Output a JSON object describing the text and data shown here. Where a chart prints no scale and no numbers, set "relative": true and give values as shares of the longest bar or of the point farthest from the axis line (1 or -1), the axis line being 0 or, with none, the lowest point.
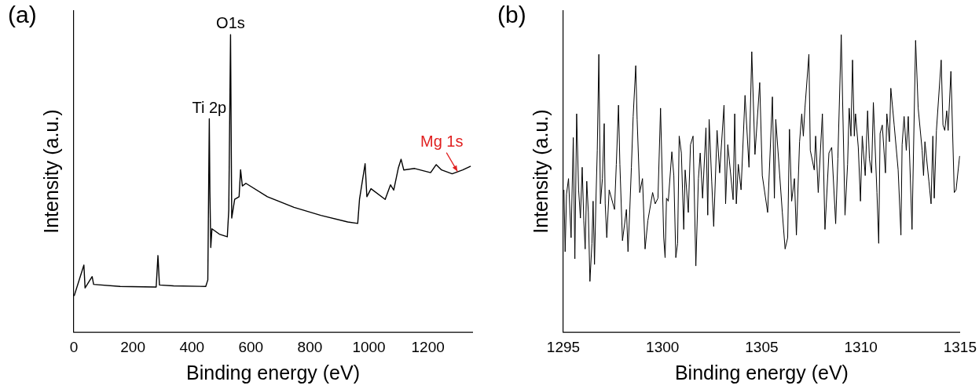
{
  "chart_data": [
    {
      "type": "line",
      "title": "(a)",
      "xlabel": "Binding energy (eV)",
      "ylabel": "Intensity (a.u.)",
      "relative": true,
      "xlim": [
        0,
        1350
      ],
      "xticks": [
        0,
        200,
        400,
        600,
        800,
        1000,
        1200
      ],
      "grid": false,
      "legend": false,
      "marker": "none",
      "annotations": [
        {
          "text": "Ti 2p",
          "x": 459,
          "y": 0.717
        },
        {
          "text": "O1s",
          "x": 531,
          "y": 1
        },
        {
          "text": "Mg 1s",
          "x": 1300,
          "y": 0.54
        }
      ],
      "series": [
        {
          "color": "#000000",
          "x": [
            1,
            34,
            38,
            62,
            67,
            157,
            279,
            285,
            290,
            338,
            447,
            454,
            459,
            461,
            464,
            468,
            493,
            520,
            525,
            531,
            535,
            545,
            560,
            565,
            571,
            583,
            656,
            746,
            837,
            928,
            962,
            968,
            987,
            993,
            1007,
            1055,
            1073,
            1084,
            1100,
            1109,
            1118,
            1155,
            1209,
            1228,
            1246,
            1282,
            1318,
            1345
          ],
          "values": [
            0.121,
            0.225,
            0.148,
            0.186,
            0.16,
            0.153,
            0.151,
            0.257,
            0.158,
            0.155,
            0.153,
            0.175,
            0.717,
            0.473,
            0.284,
            0.347,
            0.329,
            0.32,
            0.41,
            1,
            0.383,
            0.446,
            0.455,
            0.546,
            0.491,
            0.5,
            0.455,
            0.419,
            0.392,
            0.37,
            0.365,
            0.446,
            0.566,
            0.455,
            0.482,
            0.446,
            0.495,
            0.477,
            0.553,
            0.581,
            0.545,
            0.55,
            0.536,
            0.563,
            0.545,
            0.532,
            0.545,
            0.558
          ]
        }
      ]
    },
    {
      "type": "line",
      "title": "(b)",
      "xlabel": "Binding energy (eV)",
      "ylabel": "Intensity (a.u.)",
      "relative": true,
      "xlim": [
        1295,
        1315
      ],
      "xticks": [
        1295,
        1300,
        1305,
        1310,
        1315
      ],
      "grid": false,
      "legend": false,
      "marker": "none",
      "series": [
        {
          "color": "#000000",
          "x": [
            1295.03,
            1295.09,
            1295.16,
            1295.26,
            1295.39,
            1295.5,
            1295.58,
            1295.67,
            1295.77,
            1295.86,
            1295.95,
            1296.03,
            1296.1,
            1296.18,
            1296.26,
            1296.34,
            1296.44,
            1296.5,
            1296.57,
            1296.64,
            1296.71,
            1296.79,
            1296.87,
            1296.97,
            1297.06,
            1297.11,
            1297.19,
            1297.31,
            1297.58,
            1297.67,
            1297.78,
            1297.85,
            1297.98,
            1298.18,
            1298.26,
            1298.35,
            1298.43,
            1298.52,
            1298.65,
            1298.72,
            1298.85,
            1298.99,
            1299.12,
            1299.26,
            1299.5,
            1299.63,
            1299.77,
            1299.9,
            1300.06,
            1300.13,
            1300.2,
            1300.29,
            1300.47,
            1300.57,
            1300.67,
            1300.76,
            1300.84,
            1300.95,
            1301.07,
            1301.14,
            1301.3,
            1301.41,
            1301.54,
            1301.68,
            1301.81,
            1301.9,
            1302.02,
            1302.19,
            1302.28,
            1302.35,
            1302.48,
            1302.58,
            1302.75,
            1302.88,
            1303.1,
            1303.18,
            1303.29,
            1303.56,
            1303.64,
            1303.72,
            1303.82,
            1303.96,
            1304.16,
            1304.36,
            1304.5,
            1304.66,
            1304.9,
            1305.03,
            1305.3,
            1305.54,
            1305.64,
            1305.71,
            1306.04,
            1306.18,
            1306.31,
            1306.4,
            1306.51,
            1306.65,
            1306.75,
            1306.91,
            1307.02,
            1307.1,
            1307.18,
            1307.38,
            1307.45,
            1307.65,
            1307.72,
            1307.85,
            1308.06,
            1308.19,
            1308.39,
            1308.53,
            1308.73,
            1308.84,
            1309.01,
            1309.2,
            1309.33,
            1309.41,
            1309.5,
            1309.58,
            1309.67,
            1309.73,
            1309.87,
            1309.98,
            1310.07,
            1310.22,
            1310.34,
            1310.43,
            1310.54,
            1310.63,
            1310.81,
            1310.9,
            1310.97,
            1311.08,
            1311.24,
            1311.31,
            1311.44,
            1311.51,
            1311.68,
            1311.88,
            1312.02,
            1312.08,
            1312.18,
            1312.29,
            1312.39,
            1312.58,
            1312.76,
            1312.89,
            1313.09,
            1313.16,
            1313.23,
            1313.43,
            1313.54,
            1313.63,
            1313.7,
            1313.81,
            1314.05,
            1314.14,
            1314.23,
            1314.33,
            1314.4,
            1314.54,
            1314.71,
            1314.8,
            1314.98
          ],
          "values": [
            0.478,
            0.27,
            0.464,
            0.516,
            0.317,
            0.654,
            0.246,
            0.734,
            0.478,
            0.383,
            0.554,
            0.374,
            0.279,
            0.507,
            0.402,
            0.17,
            0.298,
            0.44,
            0.227,
            0.436,
            0.611,
            0.934,
            0.431,
            0.516,
            0.701,
            0.431,
            0.317,
            0.478,
            0.412,
            0.564,
            0.763,
            0.564,
            0.307,
            0.412,
            0.27,
            0.412,
            0.554,
            0.725,
            0.896,
            0.715,
            0.469,
            0.516,
            0.279,
            0.374,
            0.469,
            0.431,
            0.45,
            0.753,
            0.317,
            0.25,
            0.45,
            0.44,
            0.606,
            0.526,
            0.25,
            0.298,
            0.659,
            0.602,
            0.345,
            0.545,
            0.402,
            0.63,
            0.659,
            0.222,
            0.516,
            0.602,
            0.45,
            0.687,
            0.393,
            0.715,
            0.507,
            0.355,
            0.678,
            0.535,
            0.763,
            0.431,
            0.63,
            0.445,
            0.734,
            0.431,
            0.564,
            0.478,
            0.796,
            0.554,
            0.943,
            0.597,
            0.839,
            0.526,
            0.402,
            0.791,
            0.45,
            0.715,
            0.402,
            0.279,
            0.317,
            0.682,
            0.44,
            0.516,
            0.326,
            0.64,
            0.734,
            0.659,
            0.753,
            0.934,
            0.611,
            0.545,
            0.659,
            0.469,
            0.734,
            0.345,
            0.602,
            0.621,
            0.364,
            0.583,
            1,
            0.393,
            0.564,
            0.753,
            0.659,
            0.915,
            0.659,
            0.734,
            0.621,
            0.44,
            0.659,
            0.526,
            0.744,
            0.583,
            0.535,
            0.772,
            0.469,
            0.298,
            0.668,
            0.696,
            0.535,
            0.734,
            0.64,
            0.82,
            0.696,
            0.545,
            0.326,
            0.63,
            0.725,
            0.611,
            0.725,
            0.345,
            0.981,
            0.753,
            0.611,
            0.526,
            0.64,
            0.507,
            0.431,
            0.659,
            0.45,
            0.678,
            0.915,
            0.696,
            0.678,
            0.744,
            0.678,
            0.877,
            0.469,
            0.478,
            0.592
          ]
        }
      ]
    }
  ]
}
